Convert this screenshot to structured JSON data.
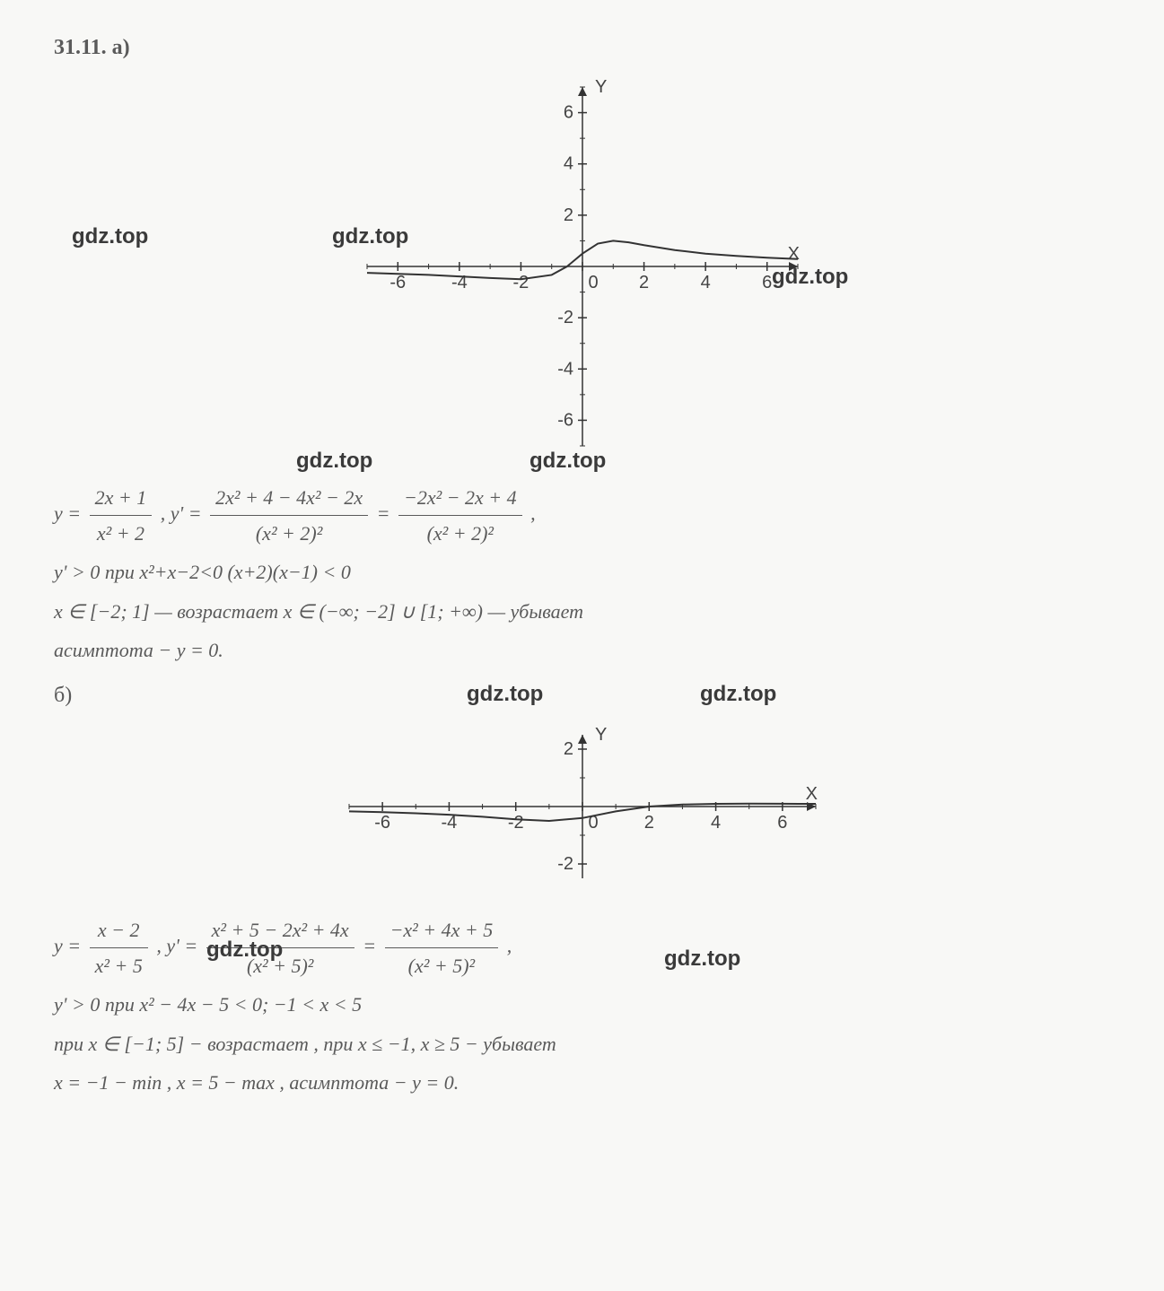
{
  "problem_number": "31.11. а)",
  "watermarks": [
    "gdz.top",
    "gdz.top",
    "gdz.top",
    "gdz.top",
    "gdz.top",
    "gdz.top",
    "gdz.top",
    "gdz.top",
    "gdz.top"
  ],
  "chart_a": {
    "type": "line",
    "x_range": [
      -7,
      7
    ],
    "y_range": [
      -7,
      7
    ],
    "x_ticks": [
      -6,
      -4,
      -2,
      0,
      2,
      4,
      6
    ],
    "y_ticks": [
      -6,
      -4,
      -2,
      2,
      4,
      6
    ],
    "x_axis_label": "X",
    "y_axis_label": "Y",
    "curve_points": [
      [
        -7,
        -0.25
      ],
      [
        -6,
        -0.29
      ],
      [
        -5,
        -0.33
      ],
      [
        -4,
        -0.39
      ],
      [
        -3,
        -0.45
      ],
      [
        -2,
        -0.5
      ],
      [
        -1,
        -0.33
      ],
      [
        -0.5,
        0
      ],
      [
        0,
        0.5
      ],
      [
        0.5,
        0.89
      ],
      [
        1,
        1.0
      ],
      [
        1.5,
        0.94
      ],
      [
        2,
        0.83
      ],
      [
        3,
        0.64
      ],
      [
        4,
        0.5
      ],
      [
        5,
        0.41
      ],
      [
        6,
        0.34
      ],
      [
        7,
        0.29
      ]
    ],
    "axis_color": "#333333",
    "curve_color": "#333333",
    "curve_width": 2,
    "tick_fontsize": 20,
    "label_fontsize": 20,
    "background_color": "#f8f8f6"
  },
  "chart_b": {
    "type": "line",
    "x_range": [
      -7,
      7
    ],
    "y_range": [
      -2.5,
      2.5
    ],
    "x_ticks": [
      -6,
      -4,
      -2,
      0,
      2,
      4,
      6
    ],
    "y_ticks": [
      -2,
      2
    ],
    "x_axis_label": "X",
    "y_axis_label": "Y",
    "curve_points": [
      [
        -7,
        -0.167
      ],
      [
        -6,
        -0.195
      ],
      [
        -5,
        -0.233
      ],
      [
        -4,
        -0.286
      ],
      [
        -3,
        -0.357
      ],
      [
        -2,
        -0.444
      ],
      [
        -1,
        -0.5
      ],
      [
        0,
        -0.4
      ],
      [
        1,
        -0.167
      ],
      [
        2,
        0
      ],
      [
        3,
        0.071
      ],
      [
        4,
        0.095
      ],
      [
        5,
        0.1
      ],
      [
        6,
        0.098
      ],
      [
        7,
        0.093
      ]
    ],
    "axis_color": "#333333",
    "curve_color": "#333333",
    "curve_width": 2,
    "tick_fontsize": 20,
    "label_fontsize": 20,
    "background_color": "#f8f8f6"
  },
  "math_a": {
    "line1_pre": "y = ",
    "frac1_num": "2x + 1",
    "frac1_den": "x² + 2",
    "line1_mid": " ,    y' = ",
    "frac2_num": "2x² + 4 − 4x² − 2x",
    "frac2_den": "(x² + 2)²",
    "line1_eq": " = ",
    "frac3_num": "−2x² − 2x + 4",
    "frac3_den": "(x² + 2)²",
    "line1_end": " ,",
    "line2": "y' > 0 при x²+x−2<0 (x+2)(x−1) < 0",
    "line3": "x ∈ [−2; 1] — возрастает x ∈ (−∞; −2] ∪ [1; +∞) — убывает",
    "line4": "асимптота − y = 0."
  },
  "section_b_label": "б)",
  "math_b": {
    "line1_pre": "y = ",
    "frac1_num": "x − 2",
    "frac1_den": "x² + 5",
    "line1_mid": " ,    y' = ",
    "frac2_num": "x² + 5 − 2x² + 4x",
    "frac2_den": "(x² + 5)²",
    "line1_eq": " = ",
    "frac3_num": "−x² + 4x + 5",
    "frac3_den": "(x² + 5)²",
    "line1_end": " ,",
    "line2": "y' > 0 при x² − 4x − 5 < 0;               −1 < x < 5",
    "line3": "при  x ∈ [−1; 5] − возрастает ,   при x ≤ −1, x ≥ 5 − убывает",
    "line4": "x = −1 − min ,    x = 5 − max ,  асимптота − y = 0."
  }
}
